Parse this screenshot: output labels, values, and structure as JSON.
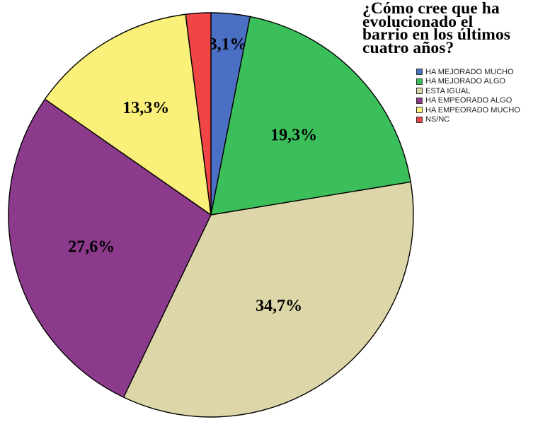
{
  "chart_data": {
    "type": "pie",
    "title_lines": [
      "¿Cómo cree que ha",
      "evolucionado el",
      "barrio en los últimos",
      "cuatro años?"
    ],
    "slices": [
      {
        "name": "HA MEJORADO MUCHO",
        "value": 3.1,
        "label": "3,1%",
        "color": "#4a6fc3"
      },
      {
        "name": "HA MEJORADO ALGO",
        "value": 19.3,
        "label": "19,3%",
        "color": "#3abf5a"
      },
      {
        "name": "ESTA IGUAL",
        "value": 34.7,
        "label": "34,7%",
        "color": "#dcd6a8"
      },
      {
        "name": "HA EMPEORADO ALGO",
        "value": 27.6,
        "label": "27,6%",
        "color": "#8c3a8c"
      },
      {
        "name": "HA EMPEORADO MUCHO",
        "value": 13.3,
        "label": "13,3%",
        "color": "#faf07a"
      },
      {
        "name": "NS/NC",
        "value": 2.0,
        "label": "",
        "color": "#ef4545"
      }
    ],
    "legend_position": "top-right",
    "start_angle": "12 o'clock",
    "direction": "clockwise"
  }
}
